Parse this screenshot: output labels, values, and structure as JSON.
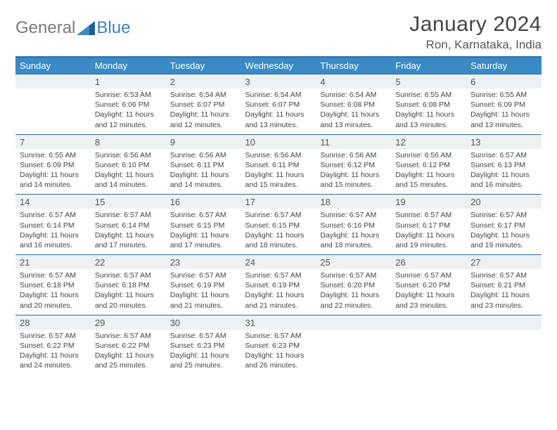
{
  "brand": {
    "part1": "General",
    "part2": "Blue"
  },
  "title": "January 2024",
  "location": "Ron, Karnataka, India",
  "colors": {
    "header_bg": "#3b8ac4",
    "header_text": "#ffffff",
    "border": "#2a6fa8",
    "daynum_bg": "#eef0f2",
    "text": "#444444",
    "logo_gray": "#7a7a7a",
    "logo_blue": "#3b82c4"
  },
  "typography": {
    "title_fontsize": 30,
    "location_fontsize": 17,
    "dayheader_fontsize": 13,
    "daynum_fontsize": 13,
    "detail_fontsize": 10.5
  },
  "day_headers": [
    "Sunday",
    "Monday",
    "Tuesday",
    "Wednesday",
    "Thursday",
    "Friday",
    "Saturday"
  ],
  "weeks": [
    {
      "nums": [
        "",
        "1",
        "2",
        "3",
        "4",
        "5",
        "6"
      ],
      "cells": [
        null,
        {
          "sunrise": "Sunrise: 6:53 AM",
          "sunset": "Sunset: 6:06 PM",
          "dl1": "Daylight: 11 hours",
          "dl2": "and 12 minutes."
        },
        {
          "sunrise": "Sunrise: 6:54 AM",
          "sunset": "Sunset: 6:07 PM",
          "dl1": "Daylight: 11 hours",
          "dl2": "and 12 minutes."
        },
        {
          "sunrise": "Sunrise: 6:54 AM",
          "sunset": "Sunset: 6:07 PM",
          "dl1": "Daylight: 11 hours",
          "dl2": "and 13 minutes."
        },
        {
          "sunrise": "Sunrise: 6:54 AM",
          "sunset": "Sunset: 6:08 PM",
          "dl1": "Daylight: 11 hours",
          "dl2": "and 13 minutes."
        },
        {
          "sunrise": "Sunrise: 6:55 AM",
          "sunset": "Sunset: 6:08 PM",
          "dl1": "Daylight: 11 hours",
          "dl2": "and 13 minutes."
        },
        {
          "sunrise": "Sunrise: 6:55 AM",
          "sunset": "Sunset: 6:09 PM",
          "dl1": "Daylight: 11 hours",
          "dl2": "and 13 minutes."
        }
      ]
    },
    {
      "nums": [
        "7",
        "8",
        "9",
        "10",
        "11",
        "12",
        "13"
      ],
      "cells": [
        {
          "sunrise": "Sunrise: 6:55 AM",
          "sunset": "Sunset: 6:09 PM",
          "dl1": "Daylight: 11 hours",
          "dl2": "and 14 minutes."
        },
        {
          "sunrise": "Sunrise: 6:56 AM",
          "sunset": "Sunset: 6:10 PM",
          "dl1": "Daylight: 11 hours",
          "dl2": "and 14 minutes."
        },
        {
          "sunrise": "Sunrise: 6:56 AM",
          "sunset": "Sunset: 6:11 PM",
          "dl1": "Daylight: 11 hours",
          "dl2": "and 14 minutes."
        },
        {
          "sunrise": "Sunrise: 6:56 AM",
          "sunset": "Sunset: 6:11 PM",
          "dl1": "Daylight: 11 hours",
          "dl2": "and 15 minutes."
        },
        {
          "sunrise": "Sunrise: 6:56 AM",
          "sunset": "Sunset: 6:12 PM",
          "dl1": "Daylight: 11 hours",
          "dl2": "and 15 minutes."
        },
        {
          "sunrise": "Sunrise: 6:56 AM",
          "sunset": "Sunset: 6:12 PM",
          "dl1": "Daylight: 11 hours",
          "dl2": "and 15 minutes."
        },
        {
          "sunrise": "Sunrise: 6:57 AM",
          "sunset": "Sunset: 6:13 PM",
          "dl1": "Daylight: 11 hours",
          "dl2": "and 16 minutes."
        }
      ]
    },
    {
      "nums": [
        "14",
        "15",
        "16",
        "17",
        "18",
        "19",
        "20"
      ],
      "cells": [
        {
          "sunrise": "Sunrise: 6:57 AM",
          "sunset": "Sunset: 6:14 PM",
          "dl1": "Daylight: 11 hours",
          "dl2": "and 16 minutes."
        },
        {
          "sunrise": "Sunrise: 6:57 AM",
          "sunset": "Sunset: 6:14 PM",
          "dl1": "Daylight: 11 hours",
          "dl2": "and 17 minutes."
        },
        {
          "sunrise": "Sunrise: 6:57 AM",
          "sunset": "Sunset: 6:15 PM",
          "dl1": "Daylight: 11 hours",
          "dl2": "and 17 minutes."
        },
        {
          "sunrise": "Sunrise: 6:57 AM",
          "sunset": "Sunset: 6:15 PM",
          "dl1": "Daylight: 11 hours",
          "dl2": "and 18 minutes."
        },
        {
          "sunrise": "Sunrise: 6:57 AM",
          "sunset": "Sunset: 6:16 PM",
          "dl1": "Daylight: 11 hours",
          "dl2": "and 18 minutes."
        },
        {
          "sunrise": "Sunrise: 6:57 AM",
          "sunset": "Sunset: 6:17 PM",
          "dl1": "Daylight: 11 hours",
          "dl2": "and 19 minutes."
        },
        {
          "sunrise": "Sunrise: 6:57 AM",
          "sunset": "Sunset: 6:17 PM",
          "dl1": "Daylight: 11 hours",
          "dl2": "and 19 minutes."
        }
      ]
    },
    {
      "nums": [
        "21",
        "22",
        "23",
        "24",
        "25",
        "26",
        "27"
      ],
      "cells": [
        {
          "sunrise": "Sunrise: 6:57 AM",
          "sunset": "Sunset: 6:18 PM",
          "dl1": "Daylight: 11 hours",
          "dl2": "and 20 minutes."
        },
        {
          "sunrise": "Sunrise: 6:57 AM",
          "sunset": "Sunset: 6:18 PM",
          "dl1": "Daylight: 11 hours",
          "dl2": "and 20 minutes."
        },
        {
          "sunrise": "Sunrise: 6:57 AM",
          "sunset": "Sunset: 6:19 PM",
          "dl1": "Daylight: 11 hours",
          "dl2": "and 21 minutes."
        },
        {
          "sunrise": "Sunrise: 6:57 AM",
          "sunset": "Sunset: 6:19 PM",
          "dl1": "Daylight: 11 hours",
          "dl2": "and 21 minutes."
        },
        {
          "sunrise": "Sunrise: 6:57 AM",
          "sunset": "Sunset: 6:20 PM",
          "dl1": "Daylight: 11 hours",
          "dl2": "and 22 minutes."
        },
        {
          "sunrise": "Sunrise: 6:57 AM",
          "sunset": "Sunset: 6:20 PM",
          "dl1": "Daylight: 11 hours",
          "dl2": "and 23 minutes."
        },
        {
          "sunrise": "Sunrise: 6:57 AM",
          "sunset": "Sunset: 6:21 PM",
          "dl1": "Daylight: 11 hours",
          "dl2": "and 23 minutes."
        }
      ]
    },
    {
      "nums": [
        "28",
        "29",
        "30",
        "31",
        "",
        "",
        ""
      ],
      "cells": [
        {
          "sunrise": "Sunrise: 6:57 AM",
          "sunset": "Sunset: 6:22 PM",
          "dl1": "Daylight: 11 hours",
          "dl2": "and 24 minutes."
        },
        {
          "sunrise": "Sunrise: 6:57 AM",
          "sunset": "Sunset: 6:22 PM",
          "dl1": "Daylight: 11 hours",
          "dl2": "and 25 minutes."
        },
        {
          "sunrise": "Sunrise: 6:57 AM",
          "sunset": "Sunset: 6:23 PM",
          "dl1": "Daylight: 11 hours",
          "dl2": "and 25 minutes."
        },
        {
          "sunrise": "Sunrise: 6:57 AM",
          "sunset": "Sunset: 6:23 PM",
          "dl1": "Daylight: 11 hours",
          "dl2": "and 26 minutes."
        },
        null,
        null,
        null
      ]
    }
  ]
}
